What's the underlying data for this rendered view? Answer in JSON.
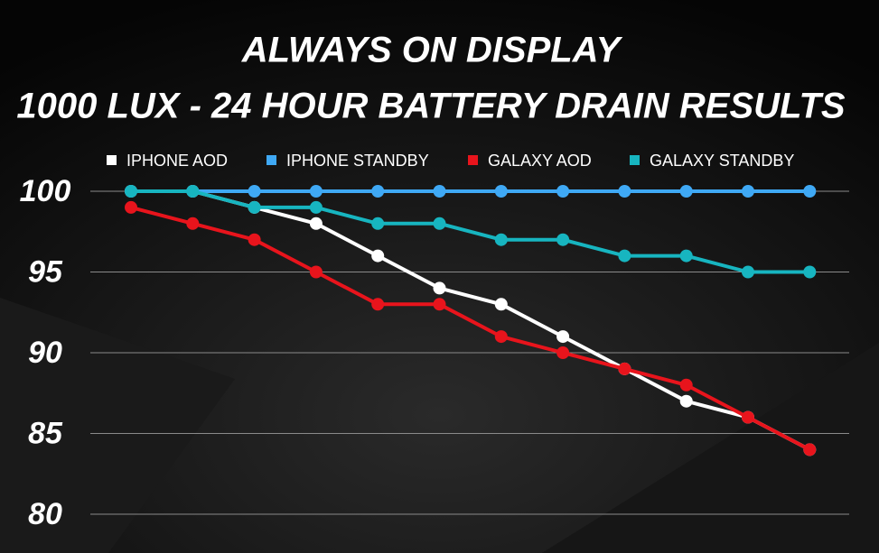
{
  "chart_data": {
    "type": "line",
    "title": "ALWAYS ON DISPLAY",
    "subtitle": "1000 LUX - 24 HOUR BATTERY DRAIN RESULTS",
    "categories": [
      null,
      null,
      null,
      null,
      null,
      null,
      null,
      null,
      null,
      null,
      null,
      null
    ],
    "series": [
      {
        "name": "IPHONE AOD",
        "color": "#ffffff",
        "values": [
          100,
          100,
          99,
          98,
          96,
          94,
          93,
          91,
          89,
          87,
          86,
          84
        ]
      },
      {
        "name": "IPHONE STANDBY",
        "color": "#3fa9f5",
        "values": [
          100,
          100,
          100,
          100,
          100,
          100,
          100,
          100,
          100,
          100,
          100,
          100
        ]
      },
      {
        "name": "GALAXY AOD",
        "color": "#e8141c",
        "values": [
          99,
          98,
          97,
          95,
          93,
          93,
          91,
          90,
          89,
          88,
          86,
          84
        ]
      },
      {
        "name": "GALAXY STANDBY",
        "color": "#17b5c0",
        "values": [
          100,
          100,
          99,
          99,
          98,
          98,
          97,
          97,
          96,
          96,
          95,
          95
        ]
      }
    ],
    "ylim": [
      80,
      100
    ],
    "yticks": [
      80,
      85,
      90,
      95,
      100
    ],
    "grid": true,
    "legend": "top"
  }
}
